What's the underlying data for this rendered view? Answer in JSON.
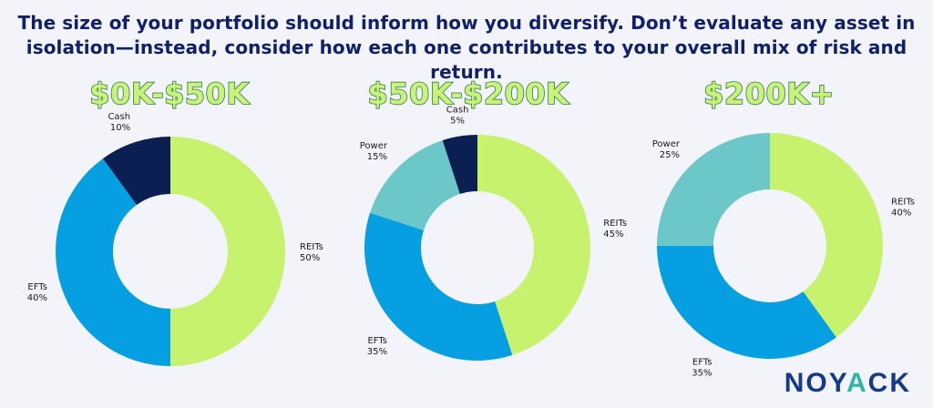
{
  "headline": {
    "line1": "The size of your portfolio should inform how you diversify. Don’t evaluate any asset in",
    "line2": "isolation—instead, consider how each one contributes to your overall mix of risk and return."
  },
  "colors": {
    "REITs": "#c6f26e",
    "EFTs": "#069fe2",
    "Cash": "#0b1f52",
    "Power": "#6cc8c8",
    "headline": "#10206a",
    "title_fill": "#c8f27a",
    "title_stroke": "#2e7d48"
  },
  "chart_data": [
    {
      "type": "pie",
      "title": "$0K-$50K",
      "slices": [
        {
          "label": "REITs",
          "value": 50,
          "display": "50%"
        },
        {
          "label": "EFTs",
          "value": 40,
          "display": "40%"
        },
        {
          "label": "Cash",
          "value": 10,
          "display": "10%"
        }
      ]
    },
    {
      "type": "pie",
      "title": "$50K-$200K",
      "slices": [
        {
          "label": "REITs",
          "value": 45,
          "display": "45%"
        },
        {
          "label": "EFTs",
          "value": 35,
          "display": "35%"
        },
        {
          "label": "Power",
          "value": 15,
          "display": "15%"
        },
        {
          "label": "Cash",
          "value": 5,
          "display": "5%"
        }
      ]
    },
    {
      "type": "pie",
      "title": "$200K+",
      "slices": [
        {
          "label": "REITs",
          "value": 40,
          "display": "40%"
        },
        {
          "label": "EFTs",
          "value": 35,
          "display": "35%"
        },
        {
          "label": "Power",
          "value": 25,
          "display": "25%"
        }
      ]
    }
  ],
  "logo": {
    "part1": "NOY",
    "part2": "A",
    "part3": "CK"
  }
}
